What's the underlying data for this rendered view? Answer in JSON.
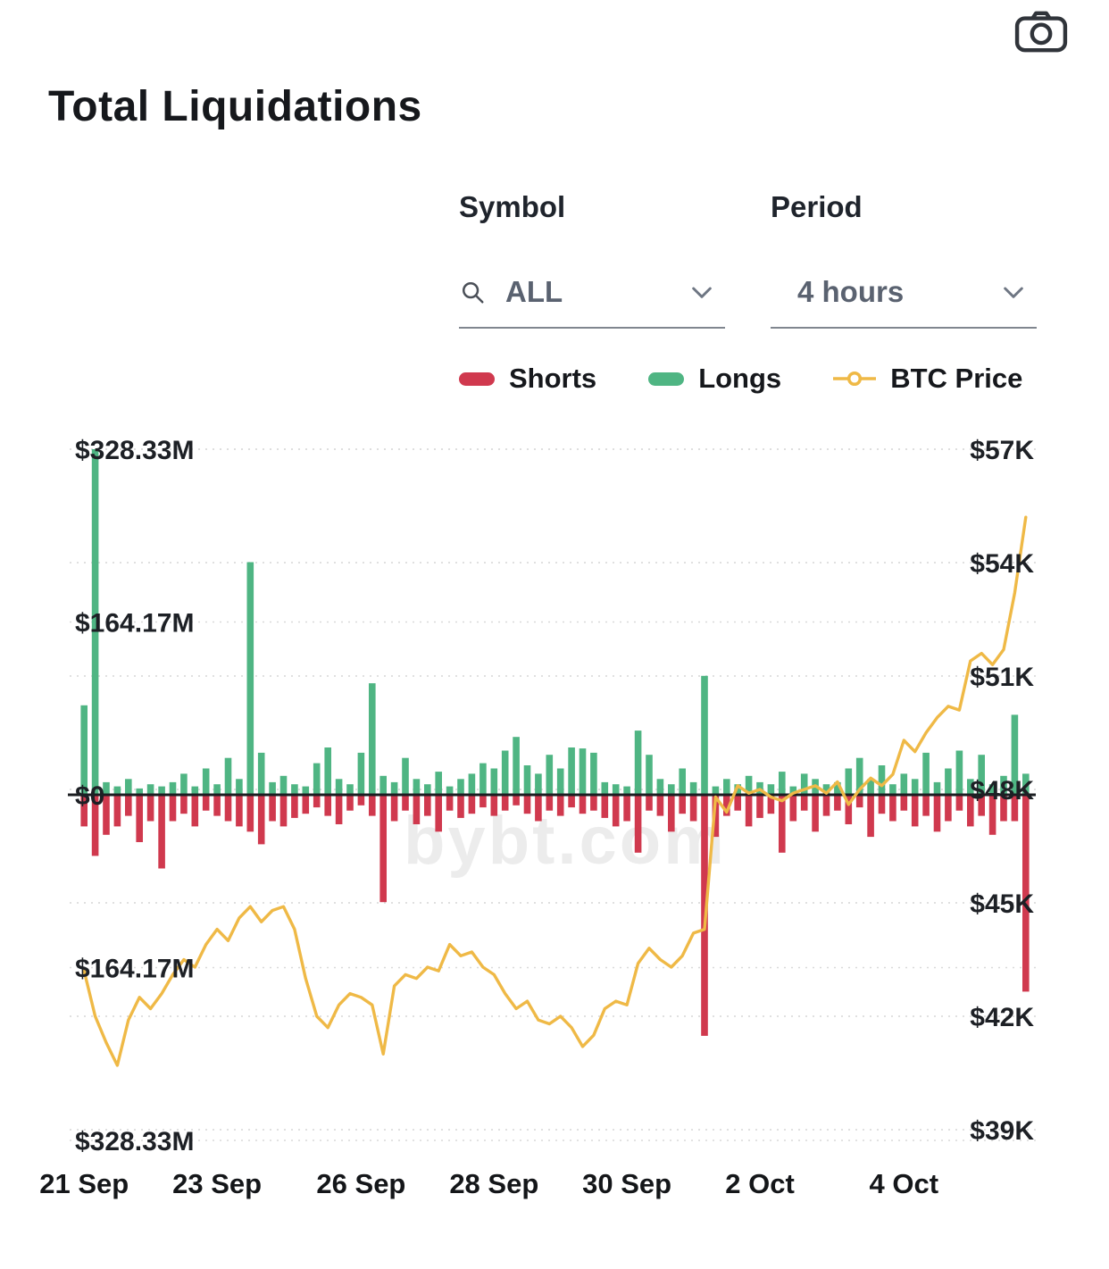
{
  "page": {
    "title": "Total Liquidations"
  },
  "controls": {
    "symbol": {
      "label": "Symbol",
      "value": "ALL"
    },
    "period": {
      "label": "Period",
      "value": "4 hours"
    }
  },
  "legend": [
    {
      "label": "Shorts",
      "color": "#d0394e",
      "type": "bar"
    },
    {
      "label": "Longs",
      "color": "#4fb583",
      "type": "bar"
    },
    {
      "label": "BTC Price",
      "color": "#efb946",
      "type": "line"
    }
  ],
  "watermark": "bybt.com",
  "chart_data": {
    "type": "bar",
    "subtype": "mirrored-bars-with-line",
    "title": "Total Liquidations",
    "period": "4 hours",
    "grid": "dotted-horizontal",
    "legend_position": "top-right",
    "left_axis": {
      "unit": "$M",
      "labels": [
        "$328.33M",
        "$164.17M",
        "$0",
        "$164.17M",
        "$328.33M"
      ],
      "values": [
        328.33,
        164.17,
        0,
        -164.17,
        -328.33
      ]
    },
    "right_axis": {
      "unit": "$K",
      "labels": [
        "$57K",
        "$54K",
        "$51K",
        "$48K",
        "$45K",
        "$42K",
        "$39K"
      ],
      "values": [
        57,
        54,
        51,
        48,
        45,
        42,
        39
      ]
    },
    "x_ticks": [
      {
        "label": "21 Sep",
        "index": 0
      },
      {
        "label": "23 Sep",
        "index": 12
      },
      {
        "label": "26 Sep",
        "index": 25
      },
      {
        "label": "28 Sep",
        "index": 37
      },
      {
        "label": "30 Sep",
        "index": 49
      },
      {
        "label": "2 Oct",
        "index": 61
      },
      {
        "label": "4 Oct",
        "index": 74
      }
    ],
    "series": [
      {
        "name": "Longs",
        "type": "bar",
        "direction": "up",
        "color": "#4fb583",
        "unit": "$M",
        "values": [
          85,
          328.33,
          12,
          8,
          15,
          6,
          10,
          8,
          12,
          20,
          8,
          25,
          10,
          35,
          15,
          221,
          40,
          12,
          18,
          10,
          8,
          30,
          45,
          15,
          10,
          40,
          106,
          18,
          12,
          35,
          15,
          10,
          22,
          8,
          15,
          20,
          30,
          25,
          42,
          55,
          28,
          20,
          38,
          25,
          45,
          44,
          40,
          12,
          10,
          8,
          61,
          38,
          15,
          10,
          25,
          12,
          113,
          8,
          15,
          10,
          18,
          12,
          10,
          22,
          8,
          20,
          15,
          10,
          12,
          25,
          35,
          15,
          28,
          10,
          20,
          15,
          40,
          12,
          25,
          42,
          15,
          38,
          10,
          18,
          76,
          20
        ]
      },
      {
        "name": "Shorts",
        "type": "bar",
        "direction": "down",
        "color": "#d0394e",
        "unit": "$M",
        "values": [
          30,
          58,
          38,
          30,
          20,
          45,
          25,
          70,
          25,
          18,
          30,
          15,
          20,
          25,
          30,
          35,
          47,
          25,
          30,
          22,
          18,
          12,
          20,
          28,
          15,
          10,
          20,
          102,
          25,
          15,
          28,
          20,
          35,
          15,
          22,
          18,
          12,
          20,
          15,
          10,
          18,
          25,
          15,
          20,
          12,
          18,
          15,
          22,
          30,
          25,
          55,
          15,
          20,
          35,
          18,
          25,
          229,
          40,
          20,
          15,
          30,
          22,
          18,
          55,
          25,
          15,
          35,
          20,
          15,
          28,
          12,
          40,
          18,
          25,
          15,
          30,
          20,
          35,
          25,
          15,
          30,
          20,
          38,
          25,
          25,
          187
        ]
      },
      {
        "name": "BTC Price",
        "type": "line",
        "color": "#efb946",
        "unit": "$K",
        "values": [
          43.2,
          42.0,
          41.3,
          40.7,
          41.9,
          42.5,
          42.2,
          42.6,
          43.1,
          43.5,
          43.3,
          43.9,
          44.3,
          44.0,
          44.6,
          44.9,
          44.5,
          44.8,
          44.9,
          44.3,
          43.0,
          42.0,
          41.7,
          42.3,
          42.6,
          42.5,
          42.3,
          41.0,
          42.8,
          43.1,
          43.0,
          43.3,
          43.2,
          43.9,
          43.6,
          43.7,
          43.3,
          43.1,
          42.6,
          42.2,
          42.4,
          41.9,
          41.8,
          42.0,
          41.7,
          41.2,
          41.5,
          42.2,
          42.4,
          42.3,
          43.4,
          43.8,
          43.5,
          43.3,
          43.6,
          44.2,
          44.3,
          47.8,
          47.4,
          48.1,
          47.9,
          48.0,
          47.8,
          47.7,
          47.9,
          48.0,
          48.1,
          47.9,
          48.2,
          47.6,
          48.0,
          48.3,
          48.1,
          48.4,
          49.3,
          49.0,
          49.5,
          49.9,
          50.2,
          50.1,
          51.4,
          51.6,
          51.3,
          51.7,
          53.2,
          55.2
        ]
      }
    ]
  }
}
